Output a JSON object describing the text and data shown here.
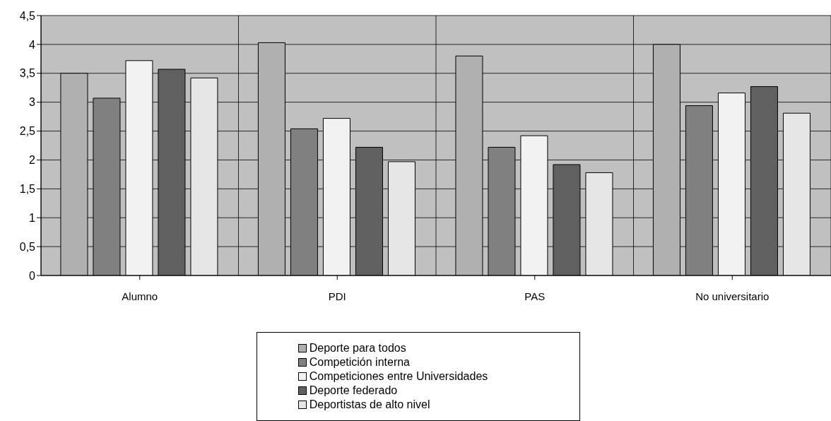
{
  "chart_data": {
    "type": "bar",
    "categories": [
      "Alumno",
      "PDI",
      "PAS",
      "No universitario"
    ],
    "series": [
      {
        "name": "Deporte para todos",
        "color": "#b0b0b0",
        "values": [
          3.5,
          4.03,
          3.8,
          4.0
        ]
      },
      {
        "name": "Competición interna",
        "color": "#808080",
        "values": [
          3.07,
          2.54,
          2.22,
          2.94
        ]
      },
      {
        "name": "Competiciones entre Universidades",
        "color": "#f2f2f2",
        "values": [
          3.72,
          2.72,
          2.42,
          3.16
        ]
      },
      {
        "name": "Deporte federado",
        "color": "#606060",
        "values": [
          3.57,
          2.22,
          1.92,
          3.27
        ]
      },
      {
        "name": "Deportistas de alto nivel",
        "color": "#e6e6e6",
        "values": [
          3.42,
          1.97,
          1.78,
          2.81
        ]
      }
    ],
    "ylim": [
      0,
      4.5
    ],
    "yticks": [
      0,
      {
        "value": 0.5,
        "label": "0,5"
      },
      1,
      {
        "value": 1.5,
        "label": "1,5"
      },
      2,
      {
        "value": 2.5,
        "label": "2,5"
      },
      3,
      {
        "value": 3.5,
        "label": "3,5"
      },
      4,
      {
        "value": 4.5,
        "label": "4,5"
      }
    ],
    "grid": true,
    "legend": "bottom"
  }
}
